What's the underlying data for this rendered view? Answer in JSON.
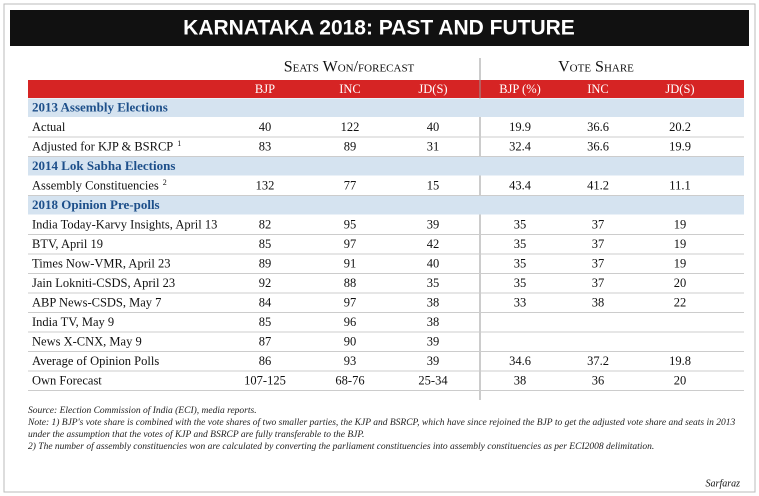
{
  "title": "KARNATAKA 2018: PAST AND FUTURE",
  "group_headers": [
    "Seats Won/forecast",
    "Vote Share"
  ],
  "columns": [
    "BJP",
    "INC",
    "JD(S)",
    "BJP (%)",
    "INC",
    "JD(S)"
  ],
  "sections": [
    {
      "heading": "2013 Assembly Elections",
      "rows": [
        {
          "label": "Actual",
          "cells": [
            40,
            122,
            40,
            19.9,
            36.6,
            20.2
          ]
        },
        {
          "label": "Adjusted for KJP & BSRCP",
          "sup": "1",
          "cells": [
            83,
            89,
            31,
            32.4,
            36.6,
            19.9
          ]
        }
      ]
    },
    {
      "heading": "2014 Lok Sabha Elections",
      "rows": [
        {
          "label": "Assembly Constituencies",
          "sup": "2",
          "cells": [
            132,
            77,
            15,
            43.4,
            41.2,
            11.1
          ]
        }
      ]
    },
    {
      "heading": "2018 Opinion Pre-polls",
      "rows": [
        {
          "label": "India Today-Karvy Insights, April 13",
          "cells": [
            82,
            95,
            39,
            35,
            37,
            19
          ]
        },
        {
          "label": "BTV, April 19",
          "cells": [
            85,
            97,
            42,
            35,
            37,
            19
          ]
        },
        {
          "label": "Times Now-VMR, April 23",
          "cells": [
            89,
            91,
            40,
            35,
            37,
            19
          ]
        },
        {
          "label": "Jain Lokniti-CSDS, April 23",
          "cells": [
            92,
            88,
            35,
            35,
            37,
            20
          ]
        },
        {
          "label": "ABP News-CSDS, May 7",
          "cells": [
            84,
            97,
            38,
            33,
            38,
            22
          ]
        },
        {
          "label": "India TV, May 9",
          "cells": [
            85,
            96,
            38
          ]
        },
        {
          "label": "News X-CNX, May 9",
          "cells": [
            87,
            90,
            39
          ]
        },
        {
          "label": "Average of Opinion Polls",
          "cells": [
            86,
            93,
            39,
            34.6,
            37.2,
            19.8
          ]
        },
        {
          "label": "Own Forecast",
          "cells": [
            "107-125",
            "68-76",
            "25-34",
            38,
            36,
            20
          ]
        }
      ]
    }
  ],
  "notes": [
    "Source: Election Commission of India (ECI), media reports.",
    "Note: 1) BJP's vote share is combined with the vote shares of two smaller parties, the KJP and BSRCP, which have since rejoined the BJP to get the adjusted vote share and seats in 2013 under the assumption that the votes of KJP and BSRCP are fully transferable to the BJP.",
    "2) The number of assembly constituencies won are calculated by converting the parliament constituencies into assembly constituencies as per ECI2008 delimitation."
  ],
  "credit": "Sarfaraz"
}
